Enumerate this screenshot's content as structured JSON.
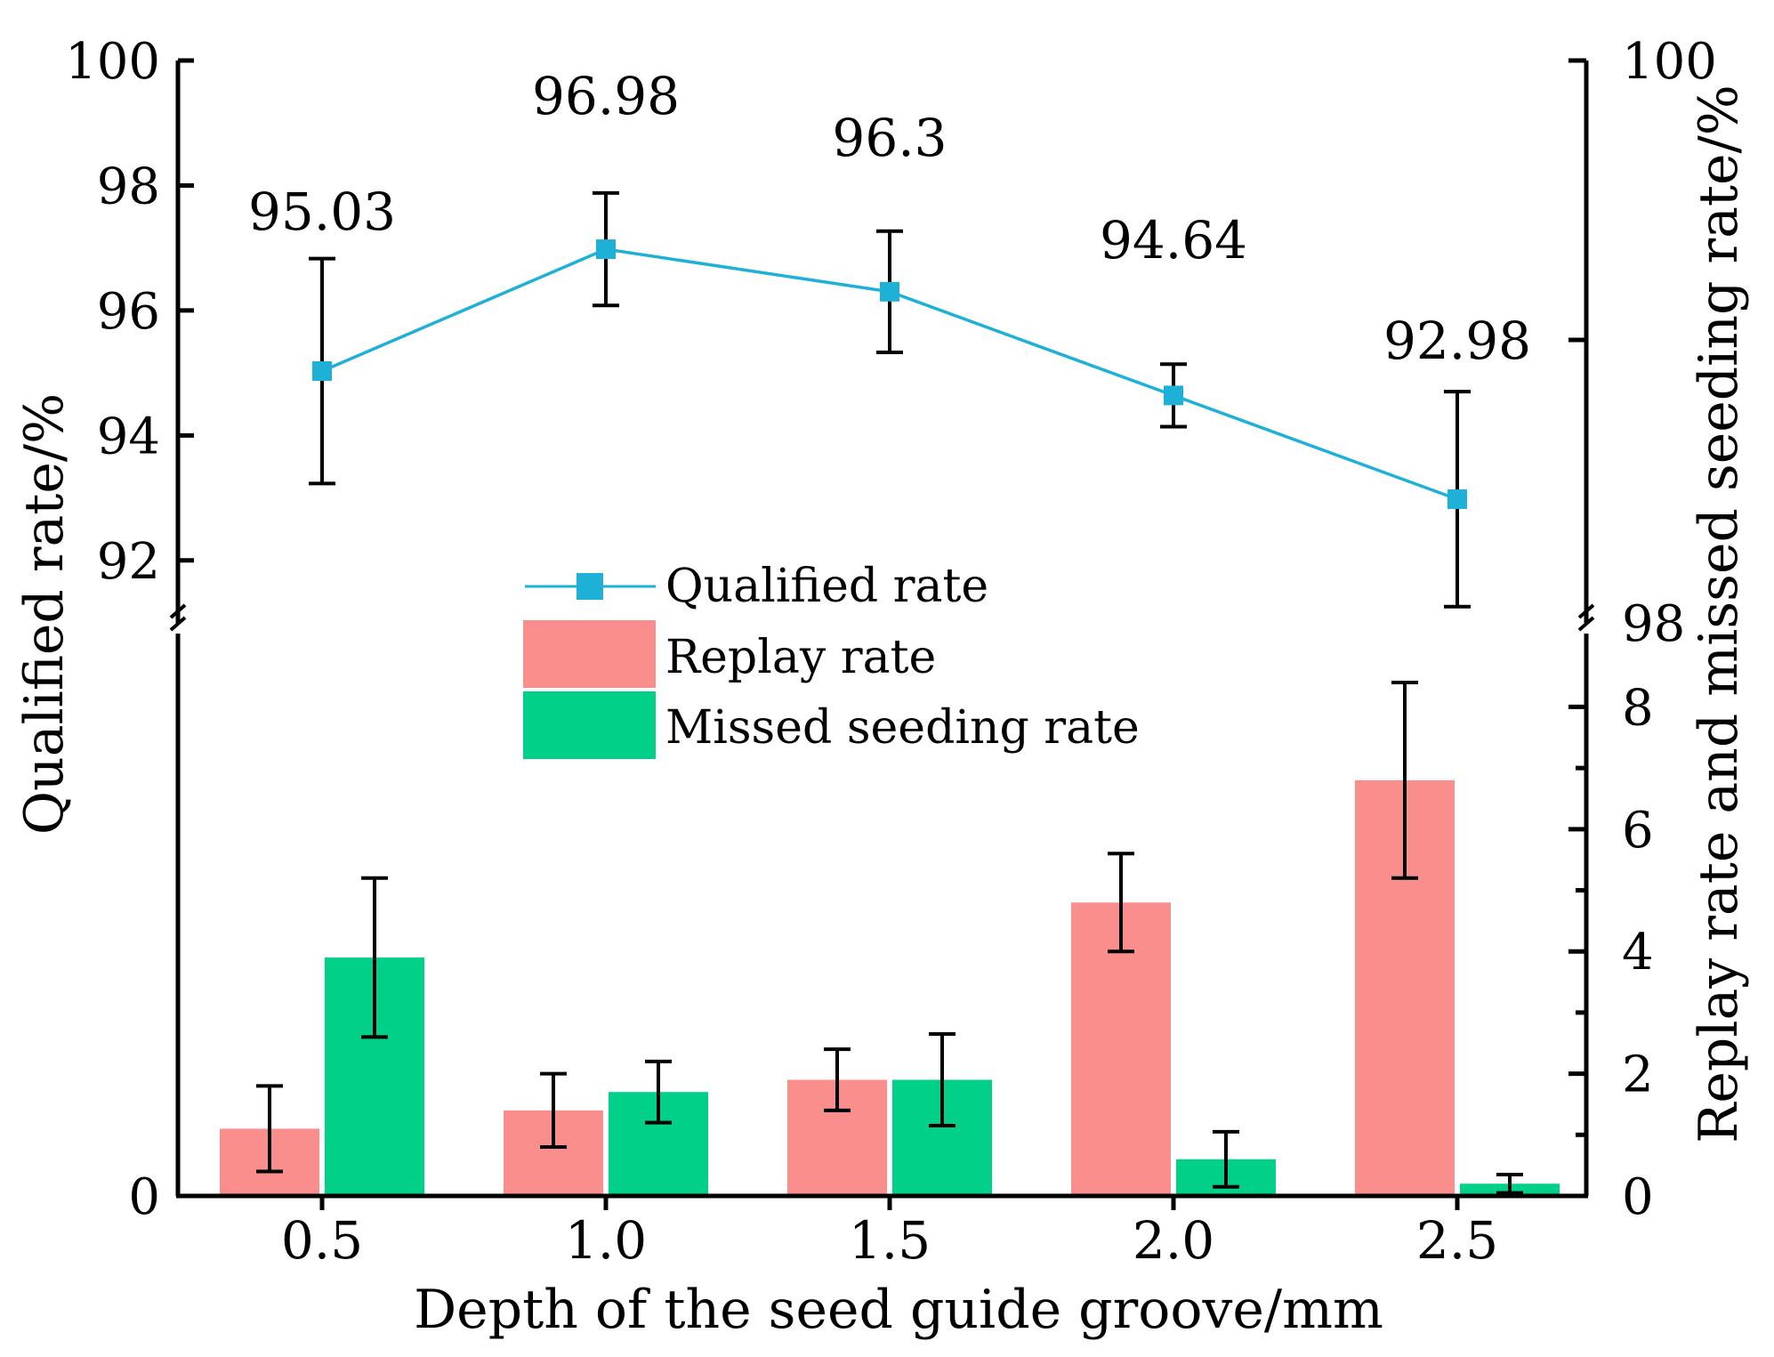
{
  "chart_data": {
    "type": "bar+line",
    "xlabel": "Depth of the seed guide groove/mm",
    "ylabel_left": "Qualified rate/%",
    "ylabel_right": "Replay rate and missed seeding rate/%",
    "categories": [
      "0.5",
      "1.0",
      "1.5",
      "2.0",
      "2.5"
    ],
    "upper_axis": {
      "ylim": [
        91,
        100
      ],
      "ticks": [
        "92",
        "94",
        "96",
        "98",
        "100"
      ],
      "right_ticks": [
        "98",
        "100"
      ]
    },
    "lower_axis": {
      "ylim": [
        0,
        9.2
      ],
      "ticks": [
        "0",
        "2",
        "4",
        "6",
        "8"
      ]
    },
    "line_series": {
      "name": "Qualified rate",
      "values": [
        95.03,
        96.98,
        96.3,
        94.64,
        92.98
      ],
      "errors": [
        1.8,
        0.9,
        0.97,
        0.5,
        1.72
      ],
      "labels": [
        "95.03",
        "96.98",
        "96.3",
        "94.64",
        "92.98"
      ]
    },
    "bar_series": [
      {
        "name": "Replay rate",
        "values": [
          1.1,
          1.4,
          1.9,
          4.8,
          6.8
        ],
        "errors": [
          0.7,
          0.6,
          0.5,
          0.8,
          1.6
        ]
      },
      {
        "name": "Missed seeding rate",
        "values": [
          3.9,
          1.7,
          1.9,
          0.6,
          0.2
        ],
        "errors": [
          1.3,
          0.5,
          0.75,
          0.45,
          0.15
        ]
      }
    ],
    "legend_position": "center",
    "colors": {
      "line": "#1fb0d8",
      "replay": "#f98e8c",
      "missed": "#00d088",
      "axis": "#000000"
    }
  }
}
